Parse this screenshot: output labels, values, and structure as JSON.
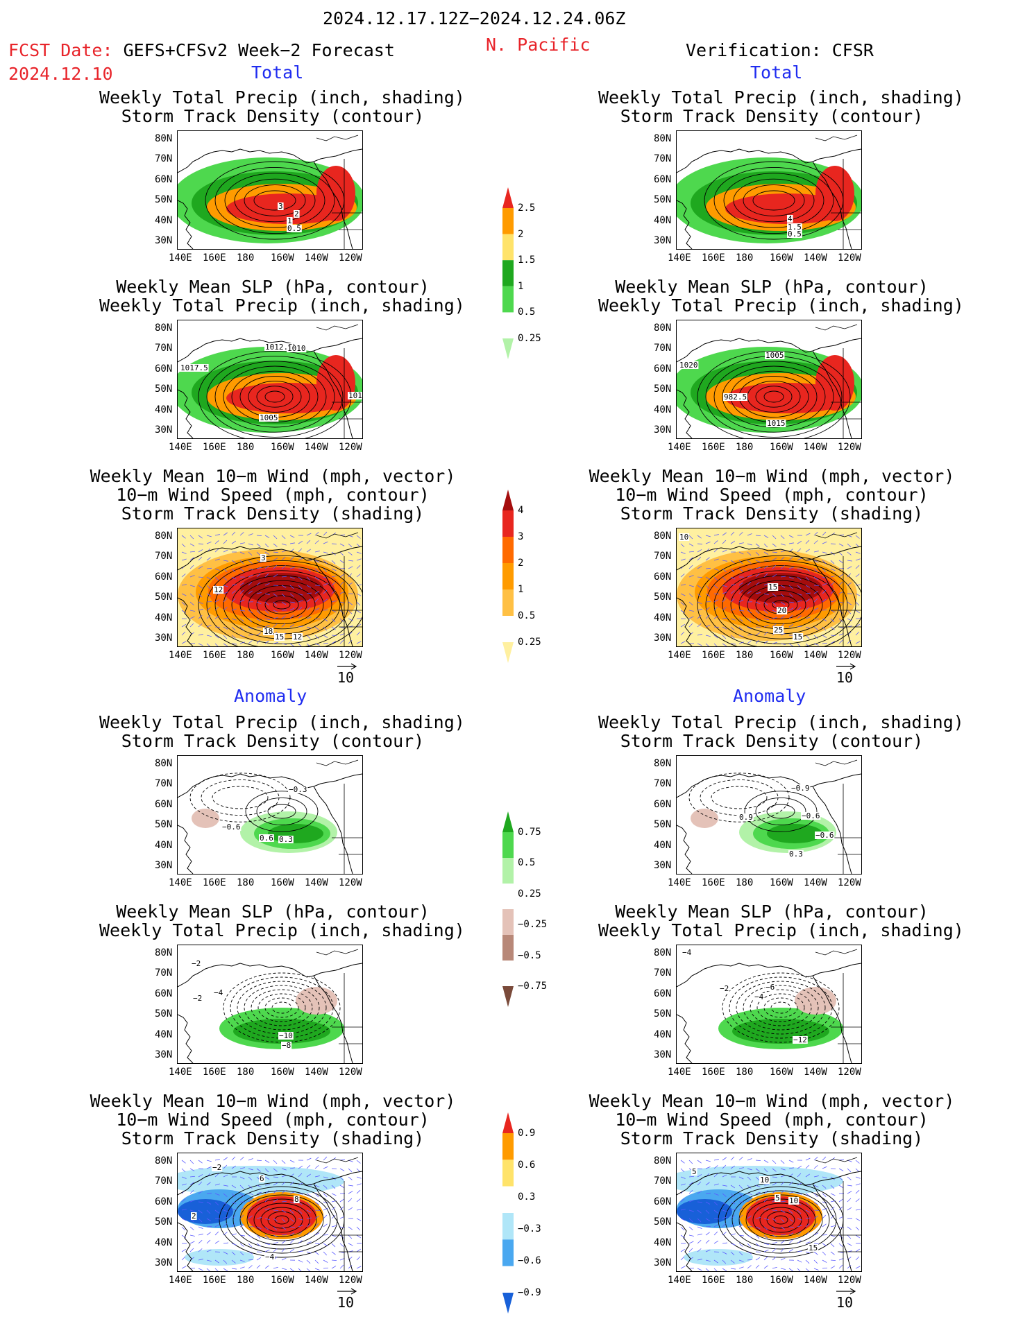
{
  "header": {
    "date_range": "2024.12.17.12Z−2024.12.24.06Z",
    "region": "N. Pacific",
    "fcst_prefix": "FCST Date:",
    "fcst_model": "GEFS+CFSv2 Week−2 Forecast",
    "fcst_date": "2024.12.10",
    "verification": "Verification: CFSR"
  },
  "sections": {
    "total": "Total",
    "anomaly": "Anomaly"
  },
  "titles": {
    "precip_storm": [
      "Weekly Total Precip (inch, shading)",
      "Storm Track Density (contour)"
    ],
    "slp_precip": [
      "Weekly Mean SLP (hPa, contour)",
      "Weekly Total Precip (inch, shading)"
    ],
    "wind_storm": [
      "Weekly Mean 10−m Wind (mph, vector)",
      "10−m Wind Speed (mph, contour)",
      "Storm Track Density (shading)"
    ]
  },
  "axes": {
    "y_labels": [
      "80N",
      "70N",
      "60N",
      "50N",
      "40N",
      "30N"
    ],
    "x_labels": [
      "140E",
      "160E",
      "180",
      "160W",
      "140W",
      "120W"
    ]
  },
  "vector_reference": "10",
  "colorbars": {
    "precip_total": {
      "ticks": [
        "2.5",
        "2",
        "1.5",
        "1",
        "0.5",
        "0.25"
      ],
      "colors": [
        "#e8261f",
        "#ff9b00",
        "#ffe36a",
        "#1fa81f",
        "#4ed84e",
        "#b2f2a8"
      ]
    },
    "storm_total": {
      "ticks": [
        "4",
        "3",
        "2",
        "1",
        "0.5",
        "0.25"
      ],
      "colors": [
        "#a50d0d",
        "#e8261f",
        "#ff6a00",
        "#ff9b00",
        "#ffc044",
        "#fff0a0"
      ]
    },
    "precip_anom": {
      "ticks": [
        "0.75",
        "0.5",
        "0.25",
        "−0.25",
        "−0.5",
        "−0.75"
      ],
      "colors": [
        "#1fa81f",
        "#4ed84e",
        "#b2f2a8",
        "#ffffff",
        "#e4c2b8",
        "#b88878",
        "#7a4a3a"
      ]
    },
    "storm_anom": {
      "ticks": [
        "0.9",
        "0.6",
        "0.3",
        "−0.3",
        "−0.6",
        "−0.9"
      ],
      "colors": [
        "#e8261f",
        "#ff9b00",
        "#ffe36a",
        "#ffffff",
        "#b0e6f8",
        "#4aa8f0",
        "#1860d8"
      ]
    }
  },
  "panel_labels": {
    "fp1": [
      "3",
      "2",
      "1",
      "0.5"
    ],
    "fp2": [
      "1012.5",
      "1010",
      "1017.5",
      "1005",
      "101"
    ],
    "fp3": [
      "3",
      "12",
      "18",
      "15",
      "12"
    ],
    "op1": [
      "4",
      "1.5",
      "0.5"
    ],
    "op2": [
      "1005",
      "1020",
      "982.5",
      "1015"
    ],
    "op3": [
      "10",
      "15",
      "20",
      "25",
      "15"
    ],
    "fa1": [
      "−0.3",
      "−0.6",
      "0.6",
      "0.3"
    ],
    "fa2": [
      "−2",
      "−2",
      "−4",
      "−10",
      "−8"
    ],
    "fa3": [
      "−2",
      "6",
      "8",
      "2",
      "−4",
      "−10"
    ],
    "oa1": [
      "−0.9",
      "0.9",
      "−0.6",
      "−0.6",
      "0.3"
    ],
    "oa2": [
      "−4",
      "−2",
      "−6",
      "−4",
      "−12"
    ],
    "oa3": [
      "5",
      "10",
      "5",
      "10",
      "15"
    ]
  }
}
